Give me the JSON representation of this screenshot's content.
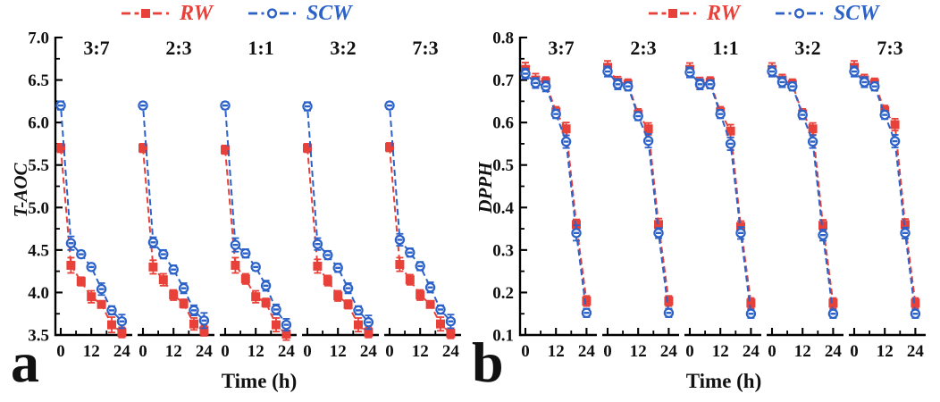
{
  "figure": {
    "background": "#ffffff",
    "colors": {
      "rw": "#e8413a",
      "scw": "#2c62c8",
      "axis": "#000000",
      "text": "#111111"
    }
  },
  "chart_data": [
    {
      "type": "line",
      "panel_letter": "a",
      "ylabel": "T-AOC",
      "xlabel": "Time (h)",
      "ylim": [
        3.5,
        7.0
      ],
      "yticks": [
        {
          "v": 3.5,
          "label": "3.5"
        },
        {
          "v": 4.0,
          "label": "4.0"
        },
        {
          "v": 4.5,
          "label": "4.5"
        },
        {
          "v": 5.0,
          "label": "5.0"
        },
        {
          "v": 5.5,
          "label": "5.5"
        },
        {
          "v": 6.0,
          "label": "6.0"
        },
        {
          "v": 6.5,
          "label": "6.5"
        },
        {
          "v": 7.0,
          "label": "7.0"
        }
      ],
      "yticks_minor": [
        3.75,
        4.25,
        4.75,
        5.25,
        5.75,
        6.25,
        6.75
      ],
      "x": [
        0,
        4,
        8,
        12,
        16,
        20,
        24
      ],
      "xticks": [
        {
          "v": 0,
          "label": "0"
        },
        {
          "v": 12,
          "label": "12"
        },
        {
          "v": 24,
          "label": "24"
        }
      ],
      "xticks_minor": [
        6,
        18
      ],
      "legend": [
        {
          "label": "RW",
          "series": "rw",
          "marker": "square"
        },
        {
          "label": "SCW",
          "series": "scw",
          "marker": "circle"
        }
      ],
      "subpanels": [
        {
          "label": "3:7",
          "series": [
            {
              "name": "RW",
              "color": "rw",
              "marker": "square",
              "values": [
                5.7,
                4.32,
                4.13,
                3.95,
                3.86,
                3.62,
                3.53
              ],
              "errors": [
                0.05,
                0.09,
                0.05,
                0.07,
                0.04,
                0.09,
                0.06
              ]
            },
            {
              "name": "SCW",
              "color": "scw",
              "marker": "circle",
              "values": [
                6.2,
                4.58,
                4.45,
                4.3,
                4.04,
                3.79,
                3.66
              ],
              "errors": [
                0.05,
                0.08,
                0.04,
                0.04,
                0.07,
                0.05,
                0.08
              ]
            }
          ]
        },
        {
          "label": "2:3",
          "series": [
            {
              "name": "RW",
              "color": "rw",
              "marker": "square",
              "values": [
                5.7,
                4.3,
                4.15,
                3.97,
                3.87,
                3.63,
                3.55
              ],
              "errors": [
                0.05,
                0.08,
                0.07,
                0.06,
                0.05,
                0.07,
                0.06
              ]
            },
            {
              "name": "SCW",
              "color": "scw",
              "marker": "circle",
              "values": [
                6.2,
                4.59,
                4.45,
                4.27,
                4.05,
                3.79,
                3.67
              ],
              "errors": [
                0.04,
                0.06,
                0.05,
                0.05,
                0.06,
                0.06,
                0.09
              ]
            }
          ]
        },
        {
          "label": "1:1",
          "series": [
            {
              "name": "RW",
              "color": "rw",
              "marker": "square",
              "values": [
                5.68,
                4.32,
                4.16,
                3.95,
                3.88,
                3.62,
                3.51
              ],
              "errors": [
                0.05,
                0.09,
                0.06,
                0.07,
                0.05,
                0.08,
                0.07
              ]
            },
            {
              "name": "SCW",
              "color": "scw",
              "marker": "circle",
              "values": [
                6.2,
                4.56,
                4.46,
                4.3,
                4.08,
                3.8,
                3.62
              ],
              "errors": [
                0.04,
                0.08,
                0.05,
                0.04,
                0.06,
                0.06,
                0.07
              ]
            }
          ]
        },
        {
          "label": "3:2",
          "series": [
            {
              "name": "RW",
              "color": "rw",
              "marker": "square",
              "values": [
                5.7,
                4.31,
                4.14,
                3.96,
                3.86,
                3.62,
                3.53
              ],
              "errors": [
                0.05,
                0.08,
                0.06,
                0.06,
                0.05,
                0.08,
                0.06
              ]
            },
            {
              "name": "SCW",
              "color": "scw",
              "marker": "circle",
              "values": [
                6.19,
                4.57,
                4.44,
                4.29,
                4.05,
                3.79,
                3.65
              ],
              "errors": [
                0.05,
                0.07,
                0.05,
                0.05,
                0.06,
                0.05,
                0.08
              ]
            }
          ]
        },
        {
          "label": "7:3",
          "series": [
            {
              "name": "RW",
              "color": "rw",
              "marker": "square",
              "values": [
                5.71,
                4.33,
                4.15,
                3.97,
                3.86,
                3.63,
                3.52
              ],
              "errors": [
                0.05,
                0.08,
                0.06,
                0.06,
                0.04,
                0.08,
                0.06
              ]
            },
            {
              "name": "SCW",
              "color": "scw",
              "marker": "circle",
              "values": [
                6.2,
                4.62,
                4.47,
                4.31,
                4.06,
                3.8,
                3.66
              ],
              "errors": [
                0.04,
                0.07,
                0.05,
                0.05,
                0.06,
                0.05,
                0.08
              ]
            }
          ]
        }
      ]
    },
    {
      "type": "line",
      "panel_letter": "b",
      "ylabel": "DPPH",
      "xlabel": "Time (h)",
      "ylim": [
        0.1,
        0.8
      ],
      "yticks": [
        {
          "v": 0.1,
          "label": "0.1"
        },
        {
          "v": 0.2,
          "label": "0.2"
        },
        {
          "v": 0.3,
          "label": "0.3"
        },
        {
          "v": 0.4,
          "label": "0.4"
        },
        {
          "v": 0.5,
          "label": "0.5"
        },
        {
          "v": 0.6,
          "label": "0.6"
        },
        {
          "v": 0.7,
          "label": "0.7"
        },
        {
          "v": 0.8,
          "label": "0.8"
        }
      ],
      "yticks_minor": [
        0.15,
        0.25,
        0.35,
        0.45,
        0.55,
        0.65,
        0.75
      ],
      "x": [
        0,
        4,
        8,
        12,
        16,
        20,
        24
      ],
      "xticks": [
        {
          "v": 0,
          "label": "0"
        },
        {
          "v": 12,
          "label": "12"
        },
        {
          "v": 24,
          "label": "24"
        }
      ],
      "xticks_minor": [
        6,
        18
      ],
      "legend": [
        {
          "label": "RW",
          "series": "rw",
          "marker": "square"
        },
        {
          "label": "SCW",
          "series": "scw",
          "marker": "circle"
        }
      ],
      "subpanels": [
        {
          "label": "3:7",
          "series": [
            {
              "name": "RW",
              "color": "rw",
              "marker": "square",
              "values": [
                0.725,
                0.7,
                0.695,
                0.625,
                0.585,
                0.36,
                0.18
              ],
              "errors": [
                0.016,
                0.015,
                0.012,
                0.012,
                0.015,
                0.012,
                0.012
              ]
            },
            {
              "name": "SCW",
              "color": "scw",
              "marker": "circle",
              "values": [
                0.715,
                0.693,
                0.685,
                0.62,
                0.555,
                0.34,
                0.152
              ],
              "errors": [
                0.012,
                0.012,
                0.012,
                0.01,
                0.015,
                0.018,
                0.01
              ]
            }
          ]
        },
        {
          "label": "2:3",
          "series": [
            {
              "name": "RW",
              "color": "rw",
              "marker": "square",
              "values": [
                0.73,
                0.695,
                0.69,
                0.62,
                0.585,
                0.36,
                0.18
              ],
              "errors": [
                0.015,
                0.013,
                0.012,
                0.012,
                0.014,
                0.014,
                0.012
              ]
            },
            {
              "name": "SCW",
              "color": "scw",
              "marker": "circle",
              "values": [
                0.72,
                0.69,
                0.685,
                0.615,
                0.557,
                0.34,
                0.152
              ],
              "errors": [
                0.012,
                0.012,
                0.01,
                0.01,
                0.016,
                0.012,
                0.01
              ]
            }
          ]
        },
        {
          "label": "1:1",
          "series": [
            {
              "name": "RW",
              "color": "rw",
              "marker": "square",
              "values": [
                0.725,
                0.692,
                0.695,
                0.625,
                0.58,
                0.355,
                0.175
              ],
              "errors": [
                0.015,
                0.014,
                0.012,
                0.012,
                0.015,
                0.013,
                0.012
              ]
            },
            {
              "name": "SCW",
              "color": "scw",
              "marker": "circle",
              "values": [
                0.718,
                0.69,
                0.69,
                0.62,
                0.55,
                0.34,
                0.15
              ],
              "errors": [
                0.012,
                0.012,
                0.01,
                0.01,
                0.015,
                0.014,
                0.01
              ]
            }
          ]
        },
        {
          "label": "3:2",
          "series": [
            {
              "name": "RW",
              "color": "rw",
              "marker": "square",
              "values": [
                0.725,
                0.7,
                0.69,
                0.62,
                0.585,
                0.358,
                0.175
              ],
              "errors": [
                0.015,
                0.013,
                0.012,
                0.012,
                0.014,
                0.013,
                0.012
              ]
            },
            {
              "name": "SCW",
              "color": "scw",
              "marker": "circle",
              "values": [
                0.72,
                0.695,
                0.685,
                0.618,
                0.555,
                0.335,
                0.15
              ],
              "errors": [
                0.012,
                0.012,
                0.01,
                0.01,
                0.015,
                0.013,
                0.01
              ]
            }
          ]
        },
        {
          "label": "7:3",
          "series": [
            {
              "name": "RW",
              "color": "rw",
              "marker": "square",
              "values": [
                0.73,
                0.7,
                0.692,
                0.628,
                0.595,
                0.36,
                0.175
              ],
              "errors": [
                0.015,
                0.013,
                0.012,
                0.012,
                0.014,
                0.013,
                0.012
              ]
            },
            {
              "name": "SCW",
              "color": "scw",
              "marker": "circle",
              "values": [
                0.72,
                0.695,
                0.685,
                0.618,
                0.556,
                0.34,
                0.15
              ],
              "errors": [
                0.012,
                0.012,
                0.01,
                0.01,
                0.015,
                0.013,
                0.01
              ]
            }
          ]
        }
      ]
    }
  ]
}
